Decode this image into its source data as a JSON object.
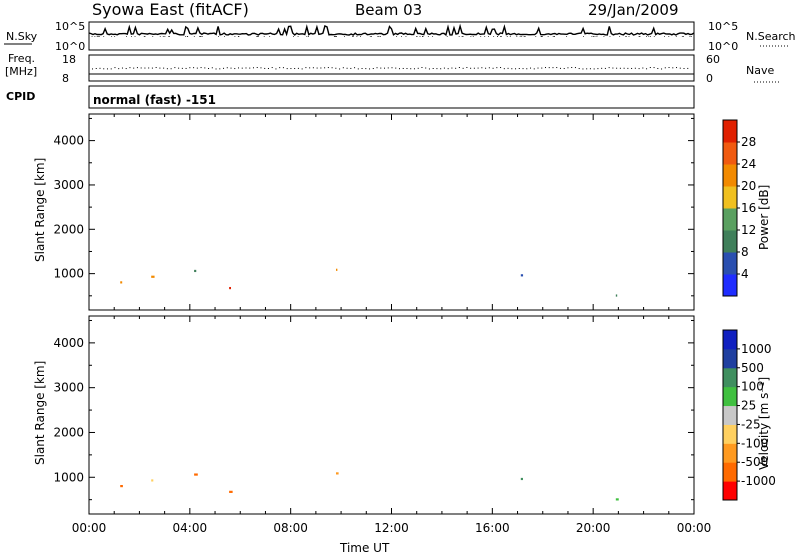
{
  "header": {
    "station": "Syowa East (fitACF)",
    "beam": "Beam 03",
    "date": "29/Jan/2009"
  },
  "top_panels": {
    "nsky_label": "N.Sky",
    "nsearch_label": "N.Search",
    "noise_ticks": [
      "10^5",
      "10^0"
    ],
    "freq_label_1": "Freq.",
    "freq_label_2": "[MHz]",
    "freq_ticks": [
      "18",
      "8"
    ],
    "nave_label": "Nave",
    "nave_ticks": [
      "60",
      "0"
    ],
    "cpid_label": "CPID",
    "cpid_value": "normal (fast) -151"
  },
  "colors": {
    "power_scale": [
      "#1f2dff",
      "#2a4fb0",
      "#3f7f5a",
      "#5aa060",
      "#f0c020",
      "#f28a00",
      "#f05a10",
      "#e02000"
    ],
    "velocity_scale": [
      "#ff0000",
      "#ff6a00",
      "#ff9a20",
      "#ffd060",
      "#c8c8c8",
      "#40c040",
      "#3f8f5f",
      "#2040a0",
      "#1020c0"
    ]
  },
  "chart_data": [
    {
      "type": "heatmap",
      "name": "power",
      "ylabel": "Slant Range [km]",
      "xlabel": "",
      "x_ticks": [
        "00:00",
        "04:00",
        "08:00",
        "12:00",
        "16:00",
        "20:00",
        "00:00"
      ],
      "xlim_hours": [
        0,
        24
      ],
      "y_ticks": [
        1000,
        2000,
        3000,
        4000
      ],
      "ylim": [
        180,
        4600
      ],
      "colorbar": {
        "label": "Power [dB]",
        "ticks": [
          "28",
          "24",
          "20",
          "16",
          "12",
          "8",
          "4"
        ]
      }
    },
    {
      "type": "heatmap",
      "name": "velocity",
      "ylabel": "Slant Range [km]",
      "xlabel": "Time UT",
      "x_ticks": [
        "00:00",
        "04:00",
        "08:00",
        "12:00",
        "16:00",
        "20:00",
        "00:00"
      ],
      "xlim_hours": [
        0,
        24
      ],
      "y_ticks": [
        1000,
        2000,
        3000,
        4000
      ],
      "ylim": [
        180,
        4600
      ],
      "colorbar": {
        "label": "Velocity [m s⁻¹]",
        "ticks": [
          "1000",
          "500",
          "100",
          "25",
          "-25",
          "-100",
          "-500",
          "-1000"
        ]
      }
    }
  ]
}
